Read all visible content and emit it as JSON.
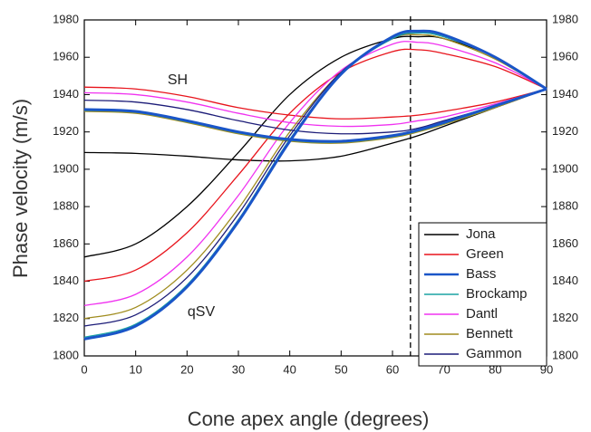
{
  "chart_data": {
    "type": "line",
    "xlabel": "Cone apex angle (degrees)",
    "ylabel": "Phase velocity (m/s)",
    "annotations": [
      "SH",
      "qSV"
    ],
    "marker_x": 63.5,
    "x": [
      0,
      10,
      20,
      30,
      40,
      50,
      60,
      65,
      70,
      80,
      90
    ],
    "xlim": [
      0,
      90
    ],
    "xticks": [
      0,
      10,
      20,
      30,
      40,
      50,
      60,
      70,
      80,
      90
    ],
    "ylim": [
      1800,
      1980
    ],
    "yticks": [
      1800,
      1820,
      1840,
      1860,
      1880,
      1900,
      1920,
      1940,
      1960,
      1980
    ],
    "legend": "lower right",
    "series": [
      {
        "name": "Jona",
        "color": "#000000",
        "sh": [
          1909,
          1908.5,
          1907,
          1905,
          1904.5,
          1907,
          1914,
          1918,
          1923,
          1933,
          1943
        ],
        "qsv": [
          1853,
          1860,
          1880,
          1909,
          1940,
          1960,
          1970,
          1971,
          1970,
          1960,
          1943
        ]
      },
      {
        "name": "Green",
        "color": "#e8141c",
        "sh": [
          1944,
          1943,
          1939,
          1933,
          1929,
          1927,
          1928,
          1929,
          1931,
          1936,
          1943
        ],
        "qsv": [
          1840,
          1846,
          1866,
          1897,
          1930,
          1952,
          1963,
          1964,
          1962,
          1955,
          1943
        ]
      },
      {
        "name": "Bass",
        "color": "#1a55c8",
        "sh": [
          1932,
          1931,
          1926,
          1920,
          1916,
          1915,
          1918,
          1921,
          1925,
          1934,
          1943
        ],
        "qsv": [
          1809,
          1816,
          1837,
          1872,
          1915,
          1951,
          1971,
          1974,
          1972,
          1960,
          1943
        ]
      },
      {
        "name": "Brockamp",
        "color": "#1aa3a3",
        "sh": [
          1931.5,
          1930.5,
          1925.5,
          1919.5,
          1915.5,
          1914.5,
          1917.5,
          1920.5,
          1924.5,
          1933.5,
          1943
        ],
        "qsv": [
          1810,
          1817,
          1838,
          1873,
          1916,
          1951,
          1970,
          1973,
          1971,
          1960,
          1943
        ]
      },
      {
        "name": "Dantl",
        "color": "#f032f0",
        "sh": [
          1941,
          1940,
          1936,
          1930,
          1925,
          1923,
          1924,
          1926,
          1928,
          1935,
          1943
        ],
        "qsv": [
          1827,
          1833,
          1853,
          1886,
          1925,
          1953,
          1967,
          1968,
          1966,
          1957,
          1943
        ]
      },
      {
        "name": "Bennett",
        "color": "#a08c1e",
        "sh": [
          1931,
          1930,
          1925,
          1919,
          1915,
          1914,
          1917,
          1920,
          1924,
          1933,
          1943
        ],
        "qsv": [
          1820,
          1826,
          1846,
          1879,
          1920,
          1952,
          1970,
          1972,
          1970,
          1959,
          1943
        ]
      },
      {
        "name": "Gammon",
        "color": "#1c1c78",
        "sh": [
          1937,
          1936,
          1932,
          1926,
          1921,
          1919,
          1920,
          1922,
          1926,
          1934,
          1943
        ],
        "qsv": [
          1816,
          1822,
          1842,
          1876,
          1918,
          1952,
          1970,
          1973,
          1971,
          1960,
          1943
        ]
      }
    ]
  }
}
